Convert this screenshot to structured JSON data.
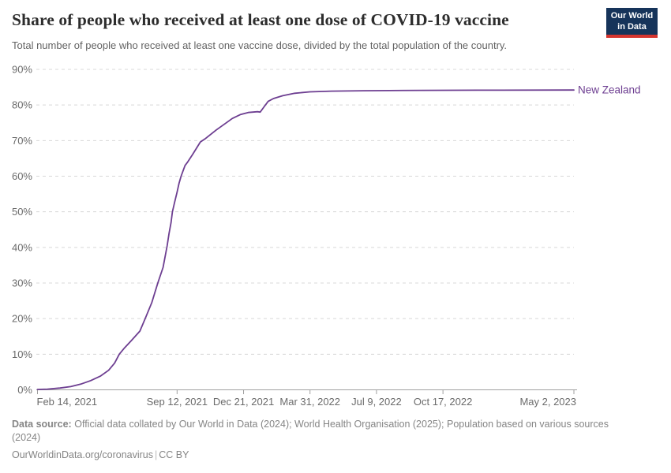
{
  "header": {
    "title": "Share of people who received at least one dose of COVID-19 vaccine",
    "subtitle": "Total number of people who received at least one vaccine dose, divided by the total population of the country.",
    "logo": {
      "line1": "Our World",
      "line2": "in Data"
    }
  },
  "chart_data": {
    "type": "line",
    "title": "Share of people who received at least one dose of COVID-19 vaccine",
    "xlabel": "",
    "ylabel": "",
    "ylim": [
      0,
      90
    ],
    "grid": "horizontal-dashed",
    "legend_position": "end-of-line-label",
    "x_range": [
      "2021-02-14",
      "2023-05-02"
    ],
    "y_ticks": [
      {
        "value": 0,
        "label": "0%"
      },
      {
        "value": 10,
        "label": "10%"
      },
      {
        "value": 20,
        "label": "20%"
      },
      {
        "value": 30,
        "label": "30%"
      },
      {
        "value": 40,
        "label": "40%"
      },
      {
        "value": 50,
        "label": "50%"
      },
      {
        "value": 60,
        "label": "60%"
      },
      {
        "value": 70,
        "label": "70%"
      },
      {
        "value": 80,
        "label": "80%"
      },
      {
        "value": 90,
        "label": "90%"
      }
    ],
    "x_ticks": [
      {
        "date": "2021-02-14",
        "label": "Feb 14, 2021",
        "align": "start"
      },
      {
        "date": "2021-09-12",
        "label": "Sep 12, 2021",
        "align": "middle"
      },
      {
        "date": "2021-12-21",
        "label": "Dec 21, 2021",
        "align": "middle"
      },
      {
        "date": "2022-03-31",
        "label": "Mar 31, 2022",
        "align": "middle"
      },
      {
        "date": "2022-07-09",
        "label": "Jul 9, 2022",
        "align": "middle"
      },
      {
        "date": "2022-10-17",
        "label": "Oct 17, 2022",
        "align": "middle"
      },
      {
        "date": "2023-05-02",
        "label": "May 2, 2023",
        "align": "end"
      }
    ],
    "series": [
      {
        "name": "New Zealand",
        "color": "#6d3e91",
        "unit": "%",
        "points": [
          [
            "2021-02-14",
            0.1
          ],
          [
            "2021-03-01",
            0.2
          ],
          [
            "2021-03-20",
            0.5
          ],
          [
            "2021-04-05",
            0.9
          ],
          [
            "2021-04-20",
            1.6
          ],
          [
            "2021-05-05",
            2.6
          ],
          [
            "2021-05-20",
            3.9
          ],
          [
            "2021-06-01",
            5.5
          ],
          [
            "2021-06-10",
            7.5
          ],
          [
            "2021-06-17",
            10
          ],
          [
            "2021-06-25",
            11.8
          ],
          [
            "2021-07-05",
            13.8
          ],
          [
            "2021-07-18",
            16.5
          ],
          [
            "2021-07-26",
            20
          ],
          [
            "2021-08-05",
            24.5
          ],
          [
            "2021-08-14",
            30
          ],
          [
            "2021-08-22",
            34.4
          ],
          [
            "2021-08-28",
            40.4
          ],
          [
            "2021-08-31",
            44
          ],
          [
            "2021-09-03",
            47
          ],
          [
            "2021-09-05",
            50
          ],
          [
            "2021-09-08",
            52.5
          ],
          [
            "2021-09-12",
            55.5
          ],
          [
            "2021-09-15",
            58
          ],
          [
            "2021-09-18",
            60
          ],
          [
            "2021-09-21",
            61.5
          ],
          [
            "2021-09-24",
            63
          ],
          [
            "2021-09-28",
            64
          ],
          [
            "2021-10-05",
            66
          ],
          [
            "2021-10-10",
            67.5
          ],
          [
            "2021-10-17",
            69.6
          ],
          [
            "2021-10-25",
            70.6
          ],
          [
            "2021-11-10",
            73
          ],
          [
            "2021-11-25",
            75
          ],
          [
            "2021-12-04",
            76.2
          ],
          [
            "2021-12-16",
            77.3
          ],
          [
            "2021-12-28",
            77.9
          ],
          [
            "2022-01-11",
            78.1
          ],
          [
            "2022-01-15",
            78.0
          ],
          [
            "2022-01-21",
            79.5
          ],
          [
            "2022-01-27",
            81.0
          ],
          [
            "2022-02-04",
            81.8
          ],
          [
            "2022-02-18",
            82.6
          ],
          [
            "2022-03-08",
            83.3
          ],
          [
            "2022-03-31",
            83.7
          ],
          [
            "2022-05-02",
            83.9
          ],
          [
            "2022-06-19",
            84.0
          ],
          [
            "2022-09-15",
            84.1
          ],
          [
            "2022-12-08",
            84.15
          ],
          [
            "2023-05-02",
            84.2
          ]
        ]
      }
    ]
  },
  "footer": {
    "datasource_label": "Data source:",
    "datasource_text": "Official data collated by Our World in Data (2024); World Health Organisation (2025); Population based on various sources (2024)",
    "link": "OurWorldinData.org/coronavirus",
    "separator": "|",
    "license": "CC BY"
  },
  "colors": {
    "series_purple": "#6d3e91",
    "logo_navy": "#16345a",
    "logo_red": "#d5352f",
    "gridline": "#d8d8d8",
    "axis": "#a0a0a0",
    "tick_label": "#6b6b6b",
    "title_text": "#2d2d2d",
    "subtitle_text": "#636363",
    "footer_text": "#858585"
  }
}
